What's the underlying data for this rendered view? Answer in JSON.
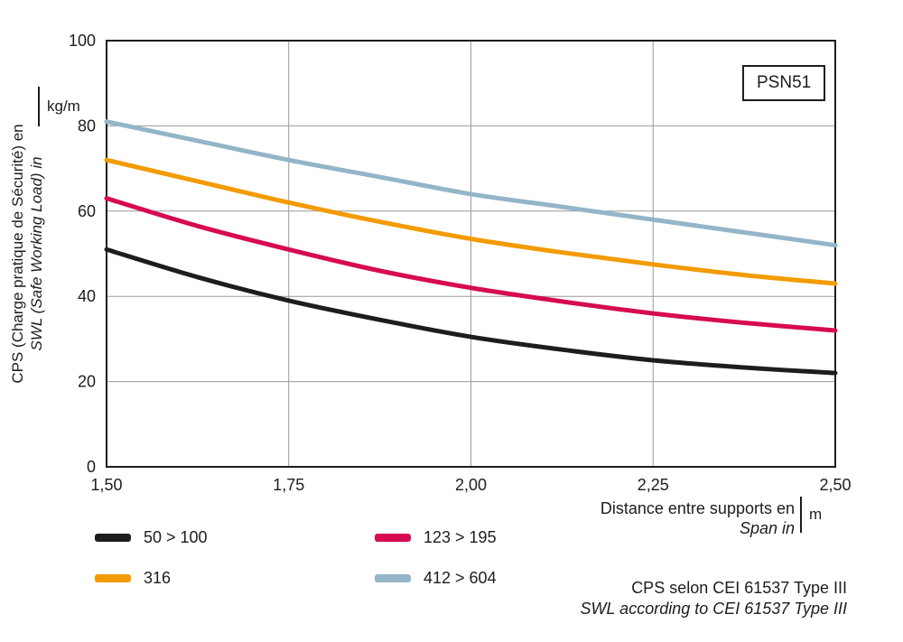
{
  "badge": "PSN51",
  "axes": {
    "y_label_line1": "CPS (Charge pratique de Sécurité) en",
    "y_label_line2": "SWL (Safe Working Load) in",
    "y_unit": "kg/m",
    "x_label_line1": "Distance entre supports en",
    "x_label_line2": "Span in",
    "x_unit": "m"
  },
  "footnote": {
    "line1": "CPS selon CEI 61537 Type III",
    "line2": "SWL according to CEI 61537 Type III"
  },
  "colors": {
    "black": "#1d1d1b",
    "red": "#d60b51",
    "orange": "#f39b00",
    "blue": "#93b5c7",
    "grid": "#999999",
    "border": "#1d1d1b"
  },
  "legend": {
    "items": [
      {
        "label": "50 > 100",
        "color": "#1d1d1b"
      },
      {
        "label": "123 > 195",
        "color": "#d60b51"
      },
      {
        "label": "316",
        "color": "#f39b00"
      },
      {
        "label": "412 > 604",
        "color": "#93b5c7"
      }
    ]
  },
  "chart_data": {
    "type": "line",
    "title": "PSN51",
    "xlabel": "Distance entre supports en / Span in (m)",
    "ylabel": "CPS (Charge pratique de Sécurité) en / SWL (Safe Working Load) in (kg/m)",
    "xlim": [
      1.5,
      2.5
    ],
    "ylim": [
      0,
      100
    ],
    "grid": true,
    "legend_position": "below",
    "x_ticks": [
      1.5,
      1.75,
      2.0,
      2.25,
      2.5
    ],
    "x_tick_labels": [
      "1,50",
      "1,75",
      "2,00",
      "2,25",
      "2,50"
    ],
    "y_ticks": [
      0,
      20,
      40,
      60,
      80,
      100
    ],
    "y_tick_labels": [
      "0",
      "20",
      "40",
      "60",
      "80",
      "100"
    ],
    "x": [
      1.5,
      1.625,
      1.75,
      1.875,
      2.0,
      2.125,
      2.25,
      2.375,
      2.5
    ],
    "series": [
      {
        "name": "50 > 100",
        "color": "#1d1d1b",
        "values": [
          51,
          44.5,
          39,
          34.5,
          30.5,
          27.5,
          25,
          23.3,
          22
        ]
      },
      {
        "name": "123 > 195",
        "color": "#d60b51",
        "values": [
          63,
          56.5,
          51,
          46,
          42,
          38.8,
          36,
          33.8,
          32
        ]
      },
      {
        "name": "316",
        "color": "#f39b00",
        "values": [
          72,
          67,
          62,
          57.5,
          53.5,
          50.3,
          47.5,
          45,
          43
        ]
      },
      {
        "name": "412 > 604",
        "color": "#93b5c7",
        "values": [
          81,
          76.5,
          72,
          68,
          64,
          61,
          58,
          55,
          52
        ]
      }
    ]
  }
}
